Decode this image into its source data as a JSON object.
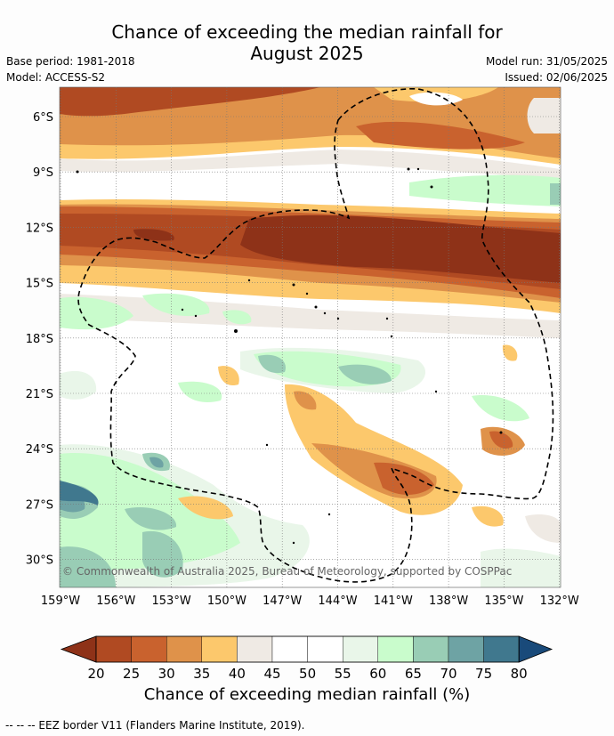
{
  "header": {
    "title_line1": "Chance of exceeding the median rainfall for",
    "title_line2": "August 2025",
    "base_period": "Base period: 1981-2018",
    "model": "Model: ACCESS-S2",
    "model_run": "Model run: 31/05/2025",
    "issued": "Issued: 02/06/2025"
  },
  "map": {
    "lat_labels": [
      "6°S",
      "9°S",
      "12°S",
      "15°S",
      "18°S",
      "21°S",
      "24°S",
      "27°S",
      "30°S"
    ],
    "lon_labels": [
      "159°W",
      "156°W",
      "153°W",
      "150°W",
      "147°W",
      "144°W",
      "141°W",
      "138°W",
      "135°W",
      "132°W"
    ],
    "copyright": "© Commonwealth of Australia 2025, Bureau of Meteorology, supported by COSPPac"
  },
  "colorbar": {
    "ticks": [
      "20",
      "25",
      "30",
      "35",
      "40",
      "45",
      "50",
      "55",
      "60",
      "65",
      "70",
      "75",
      "80"
    ],
    "colors": [
      "#8e3218",
      "#b04a22",
      "#c9622e",
      "#df924a",
      "#fcc86c",
      "#efeae4",
      "#ffffff",
      "#ffffff",
      "#e9f6e9",
      "#c9fccc",
      "#99cdb5",
      "#6ea3a4",
      "#40788e",
      "#194a7a"
    ],
    "label": "Chance of exceeding median rainfall (%)"
  },
  "footnote": "-- -- -- EEZ border V11 (Flanders Marine Institute, 2019)."
}
